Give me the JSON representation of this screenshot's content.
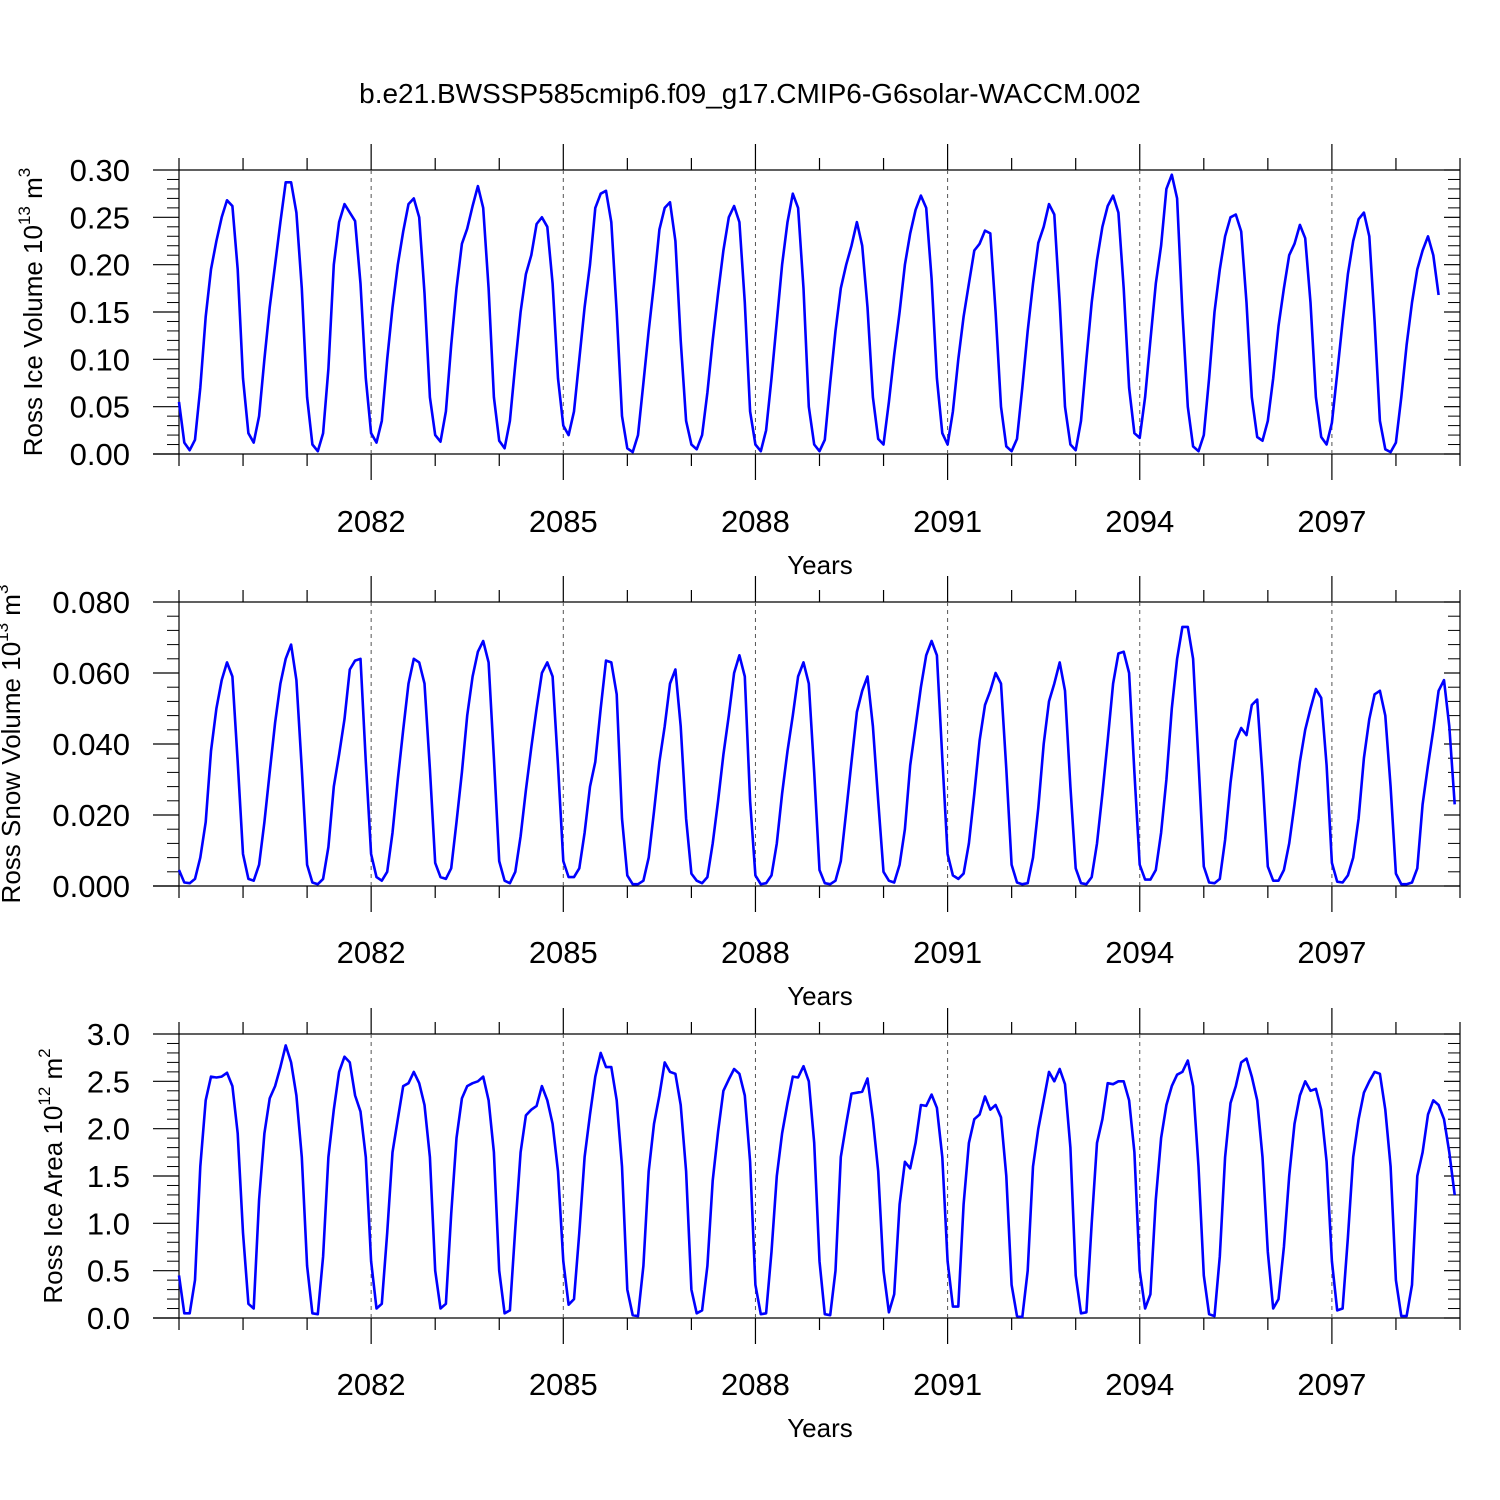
{
  "figure_title": "b.e21.BWSSP585cmip6.f09_g17.CMIP6-G6solar-WACCM.002",
  "colors": {
    "series": "#0000ff",
    "frame": "#000000",
    "grid": "#555555"
  },
  "chart_data": [
    {
      "type": "line",
      "id": "ice-volume",
      "title": "",
      "xlabel": "Years",
      "ylabel": "Ross Ice Volume 10",
      "ylabel_exponent": "13",
      "ylabel_unit": " m",
      "ylabel_unit_exponent": "3",
      "xlim": [
        2079.0,
        2099.0
      ],
      "ylim": [
        0.0,
        0.3
      ],
      "yticks": [
        "0.00",
        "0.05",
        "0.10",
        "0.15",
        "0.20",
        "0.25",
        "0.30"
      ],
      "ytick_values": [
        0.0,
        0.05,
        0.1,
        0.15,
        0.2,
        0.25,
        0.3
      ],
      "xticks": [
        "2082",
        "2085",
        "2088",
        "2091",
        "2094",
        "2097"
      ],
      "xtick_values": [
        2082,
        2085,
        2088,
        2091,
        2094,
        2097
      ],
      "grid": "dashed vertical at labeled years",
      "series": [
        {
          "color": "#0000ff",
          "x_start": 2079.0,
          "x_step": 0.083333,
          "values": [
            0.055,
            0.012,
            0.004,
            0.015,
            0.07,
            0.145,
            0.195,
            0.225,
            0.25,
            0.268,
            0.262,
            0.195,
            0.08,
            0.022,
            0.012,
            0.04,
            0.1,
            0.155,
            0.2,
            0.245,
            0.287,
            0.287,
            0.255,
            0.175,
            0.06,
            0.01,
            0.003,
            0.022,
            0.09,
            0.2,
            0.245,
            0.264,
            0.255,
            0.246,
            0.18,
            0.08,
            0.022,
            0.012,
            0.035,
            0.1,
            0.155,
            0.2,
            0.235,
            0.264,
            0.27,
            0.25,
            0.17,
            0.06,
            0.02,
            0.013,
            0.045,
            0.115,
            0.175,
            0.222,
            0.238,
            0.262,
            0.283,
            0.26,
            0.175,
            0.06,
            0.014,
            0.006,
            0.035,
            0.095,
            0.15,
            0.19,
            0.21,
            0.243,
            0.25,
            0.24,
            0.18,
            0.08,
            0.03,
            0.02,
            0.045,
            0.1,
            0.155,
            0.2,
            0.26,
            0.275,
            0.278,
            0.245,
            0.15,
            0.04,
            0.006,
            0.002,
            0.02,
            0.075,
            0.13,
            0.18,
            0.237,
            0.26,
            0.266,
            0.225,
            0.12,
            0.035,
            0.01,
            0.005,
            0.02,
            0.065,
            0.12,
            0.17,
            0.215,
            0.25,
            0.262,
            0.245,
            0.16,
            0.045,
            0.01,
            0.003,
            0.025,
            0.08,
            0.14,
            0.2,
            0.245,
            0.275,
            0.26,
            0.175,
            0.05,
            0.01,
            0.003,
            0.015,
            0.075,
            0.13,
            0.175,
            0.2,
            0.22,
            0.245,
            0.22,
            0.155,
            0.06,
            0.016,
            0.01,
            0.055,
            0.105,
            0.15,
            0.2,
            0.233,
            0.258,
            0.273,
            0.26,
            0.185,
            0.08,
            0.022,
            0.01,
            0.045,
            0.1,
            0.145,
            0.18,
            0.215,
            0.222,
            0.236,
            0.233,
            0.15,
            0.05,
            0.008,
            0.003,
            0.016,
            0.07,
            0.13,
            0.18,
            0.223,
            0.24,
            0.264,
            0.253,
            0.16,
            0.05,
            0.01,
            0.004,
            0.035,
            0.1,
            0.16,
            0.205,
            0.24,
            0.262,
            0.273,
            0.255,
            0.175,
            0.07,
            0.022,
            0.017,
            0.06,
            0.12,
            0.18,
            0.22,
            0.28,
            0.295,
            0.27,
            0.15,
            0.05,
            0.008,
            0.003,
            0.02,
            0.08,
            0.15,
            0.195,
            0.23,
            0.25,
            0.253,
            0.235,
            0.16,
            0.06,
            0.018,
            0.014,
            0.035,
            0.08,
            0.135,
            0.175,
            0.21,
            0.222,
            0.242,
            0.228,
            0.16,
            0.06,
            0.018,
            0.01,
            0.033,
            0.085,
            0.14,
            0.19,
            0.225,
            0.248,
            0.255,
            0.23,
            0.14,
            0.035,
            0.005,
            0.002,
            0.012,
            0.06,
            0.115,
            0.16,
            0.195,
            0.215,
            0.23,
            0.21,
            0.168
          ]
        }
      ]
    },
    {
      "type": "line",
      "id": "snow-volume",
      "title": "",
      "xlabel": "Years",
      "ylabel": "Ross Snow Volume 10",
      "ylabel_exponent": "13",
      "ylabel_unit": " m",
      "ylabel_unit_exponent": "3",
      "xlim": [
        2079.0,
        2099.0
      ],
      "ylim": [
        0.0,
        0.08
      ],
      "yticks": [
        "0.000",
        "0.020",
        "0.040",
        "0.060",
        "0.080"
      ],
      "ytick_values": [
        0.0,
        0.02,
        0.04,
        0.06,
        0.08
      ],
      "xticks": [
        "2082",
        "2085",
        "2088",
        "2091",
        "2094",
        "2097"
      ],
      "xtick_values": [
        2082,
        2085,
        2088,
        2091,
        2094,
        2097
      ],
      "grid": "dashed vertical at labeled years",
      "series": [
        {
          "color": "#0000ff",
          "x_start": 2079.0,
          "x_step": 0.083333,
          "values": [
            0.0045,
            0.001,
            0.0008,
            0.002,
            0.008,
            0.018,
            0.038,
            0.05,
            0.058,
            0.063,
            0.059,
            0.035,
            0.009,
            0.002,
            0.0015,
            0.006,
            0.018,
            0.032,
            0.046,
            0.057,
            0.064,
            0.068,
            0.058,
            0.033,
            0.006,
            0.001,
            0.0005,
            0.002,
            0.011,
            0.028,
            0.037,
            0.047,
            0.061,
            0.0635,
            0.064,
            0.035,
            0.009,
            0.0025,
            0.0015,
            0.004,
            0.015,
            0.03,
            0.044,
            0.057,
            0.064,
            0.063,
            0.057,
            0.033,
            0.0065,
            0.0025,
            0.002,
            0.005,
            0.018,
            0.032,
            0.048,
            0.059,
            0.066,
            0.069,
            0.063,
            0.036,
            0.007,
            0.0015,
            0.0008,
            0.004,
            0.014,
            0.027,
            0.039,
            0.05,
            0.06,
            0.063,
            0.059,
            0.034,
            0.007,
            0.0025,
            0.0025,
            0.005,
            0.015,
            0.028,
            0.035,
            0.05,
            0.0635,
            0.063,
            0.054,
            0.019,
            0.003,
            0.0005,
            0.0005,
            0.0015,
            0.008,
            0.021,
            0.035,
            0.045,
            0.057,
            0.061,
            0.045,
            0.019,
            0.0035,
            0.0015,
            0.0008,
            0.0025,
            0.012,
            0.024,
            0.037,
            0.048,
            0.06,
            0.065,
            0.059,
            0.024,
            0.003,
            0.0005,
            0.0008,
            0.003,
            0.012,
            0.026,
            0.038,
            0.048,
            0.059,
            0.063,
            0.057,
            0.032,
            0.0045,
            0.0008,
            0.0005,
            0.0015,
            0.007,
            0.021,
            0.035,
            0.049,
            0.055,
            0.059,
            0.045,
            0.024,
            0.004,
            0.0015,
            0.001,
            0.006,
            0.016,
            0.034,
            0.045,
            0.056,
            0.065,
            0.069,
            0.065,
            0.036,
            0.009,
            0.003,
            0.002,
            0.0035,
            0.012,
            0.026,
            0.041,
            0.051,
            0.055,
            0.06,
            0.057,
            0.033,
            0.006,
            0.001,
            0.0005,
            0.0008,
            0.008,
            0.022,
            0.04,
            0.052,
            0.057,
            0.063,
            0.055,
            0.028,
            0.005,
            0.0008,
            0.0005,
            0.0025,
            0.012,
            0.026,
            0.041,
            0.057,
            0.0655,
            0.066,
            0.06,
            0.032,
            0.006,
            0.0018,
            0.0018,
            0.0045,
            0.015,
            0.03,
            0.05,
            0.064,
            0.073,
            0.073,
            0.064,
            0.035,
            0.0055,
            0.001,
            0.0008,
            0.002,
            0.013,
            0.029,
            0.041,
            0.0445,
            0.0425,
            0.051,
            0.0525,
            0.031,
            0.0055,
            0.0015,
            0.0015,
            0.0045,
            0.012,
            0.023,
            0.035,
            0.044,
            0.05,
            0.0555,
            0.053,
            0.034,
            0.0065,
            0.0012,
            0.001,
            0.003,
            0.008,
            0.019,
            0.036,
            0.047,
            0.054,
            0.055,
            0.048,
            0.028,
            0.0035,
            0.0005,
            0.0005,
            0.001,
            0.005,
            0.023,
            0.034,
            0.044,
            0.055,
            0.058,
            0.045,
            0.023
          ]
        }
      ]
    },
    {
      "type": "line",
      "id": "ice-area",
      "title": "",
      "xlabel": "Years",
      "ylabel": "Ross Ice Area 10",
      "ylabel_exponent": "12",
      "ylabel_unit": " m",
      "ylabel_unit_exponent": "2",
      "xlim": [
        2079.0,
        2099.0
      ],
      "ylim": [
        0.0,
        3.0
      ],
      "yticks": [
        "0.0",
        "0.5",
        "1.0",
        "1.5",
        "2.0",
        "2.5",
        "3.0"
      ],
      "ytick_values": [
        0.0,
        0.5,
        1.0,
        1.5,
        2.0,
        2.5,
        3.0
      ],
      "xticks": [
        "2082",
        "2085",
        "2088",
        "2091",
        "2094",
        "2097"
      ],
      "xtick_values": [
        2082,
        2085,
        2088,
        2091,
        2094,
        2097
      ],
      "grid": "dashed vertical at labeled years",
      "series": [
        {
          "color": "#0000ff",
          "x_start": 2079.0,
          "x_step": 0.083333,
          "values": [
            0.45,
            0.05,
            0.05,
            0.4,
            1.6,
            2.3,
            2.55,
            2.54,
            2.55,
            2.59,
            2.45,
            1.95,
            0.9,
            0.15,
            0.1,
            1.25,
            1.95,
            2.32,
            2.45,
            2.65,
            2.88,
            2.7,
            2.35,
            1.7,
            0.55,
            0.05,
            0.04,
            0.65,
            1.7,
            2.2,
            2.6,
            2.76,
            2.7,
            2.35,
            2.18,
            1.7,
            0.6,
            0.1,
            0.15,
            0.9,
            1.75,
            2.1,
            2.45,
            2.48,
            2.6,
            2.48,
            2.25,
            1.7,
            0.5,
            0.1,
            0.15,
            1.1,
            1.9,
            2.32,
            2.45,
            2.48,
            2.5,
            2.55,
            2.3,
            1.75,
            0.5,
            0.05,
            0.08,
            0.95,
            1.75,
            2.14,
            2.2,
            2.24,
            2.45,
            2.3,
            2.05,
            1.55,
            0.6,
            0.14,
            0.2,
            0.9,
            1.7,
            2.15,
            2.55,
            2.8,
            2.65,
            2.65,
            2.3,
            1.6,
            0.3,
            0.03,
            0.02,
            0.55,
            1.55,
            2.05,
            2.35,
            2.7,
            2.6,
            2.58,
            2.25,
            1.55,
            0.3,
            0.05,
            0.08,
            0.55,
            1.45,
            1.97,
            2.4,
            2.52,
            2.63,
            2.58,
            2.35,
            1.65,
            0.35,
            0.04,
            0.05,
            0.7,
            1.5,
            1.95,
            2.27,
            2.55,
            2.54,
            2.66,
            2.5,
            1.85,
            0.6,
            0.04,
            0.03,
            0.5,
            1.7,
            2.05,
            2.37,
            2.38,
            2.39,
            2.53,
            2.1,
            1.55,
            0.5,
            0.06,
            0.25,
            1.2,
            1.65,
            1.58,
            1.85,
            2.25,
            2.24,
            2.36,
            2.22,
            1.7,
            0.6,
            0.12,
            0.12,
            1.2,
            1.85,
            2.1,
            2.15,
            2.34,
            2.2,
            2.25,
            2.12,
            1.5,
            0.35,
            0.02,
            0.01,
            0.5,
            1.6,
            2.0,
            2.3,
            2.6,
            2.5,
            2.63,
            2.47,
            1.8,
            0.45,
            0.05,
            0.06,
            1.0,
            1.85,
            2.1,
            2.48,
            2.47,
            2.5,
            2.5,
            2.3,
            1.75,
            0.5,
            0.1,
            0.25,
            1.25,
            1.9,
            2.25,
            2.45,
            2.57,
            2.6,
            2.72,
            2.45,
            1.6,
            0.45,
            0.04,
            0.02,
            0.65,
            1.7,
            2.27,
            2.45,
            2.7,
            2.74,
            2.55,
            2.3,
            1.7,
            0.7,
            0.1,
            0.2,
            0.75,
            1.5,
            2.05,
            2.35,
            2.5,
            2.4,
            2.42,
            2.2,
            1.65,
            0.6,
            0.08,
            0.1,
            0.85,
            1.7,
            2.1,
            2.38,
            2.5,
            2.6,
            2.58,
            2.2,
            1.6,
            0.4,
            0.02,
            0.02,
            0.35,
            1.5,
            1.75,
            2.15,
            2.3,
            2.25,
            2.1,
            1.75,
            1.3
          ]
        }
      ]
    }
  ]
}
